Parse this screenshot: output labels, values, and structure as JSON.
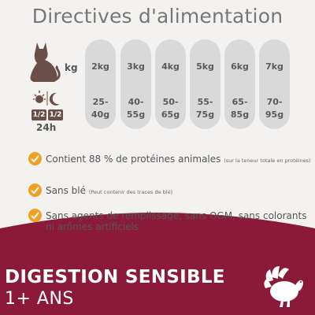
{
  "title": "Directives d'alimentation",
  "labels": {
    "kg": "kg",
    "half_day": "1/2",
    "half_night": "1/2",
    "hours": "24h"
  },
  "columns": [
    {
      "kg": "2kg",
      "grams": "25-\n40g"
    },
    {
      "kg": "3kg",
      "grams": "40-\n55g"
    },
    {
      "kg": "4kg",
      "grams": "50-\n65g"
    },
    {
      "kg": "5kg",
      "grams": "55-\n75g"
    },
    {
      "kg": "6kg",
      "grams": "65-\n85g"
    },
    {
      "kg": "7kg",
      "grams": "70-\n95g"
    }
  ],
  "features": [
    {
      "text": "Contient 88 % de protéines animales",
      "note": "(sur la teneur totale en protéines)"
    },
    {
      "text": "Sans blé",
      "note": "(Peut contenir des traces de blé)"
    },
    {
      "text_line1": "Sans agents de remplissage, sans OGM, sans colorants",
      "text_line2": "ni arômes artificiels"
    }
  ],
  "banner": {
    "line1": "DIGESTION SENSIBLE",
    "line2": "1+ ANS"
  },
  "colors": {
    "accent_orange": "#f0a022",
    "band_red": "#8b1a3a",
    "pill_gray": "#d9d9d9",
    "cat_brown": "#6a4e49"
  },
  "icons": [
    "cat-icon",
    "sun-moon-icon",
    "check-icon",
    "turkey-icon"
  ]
}
